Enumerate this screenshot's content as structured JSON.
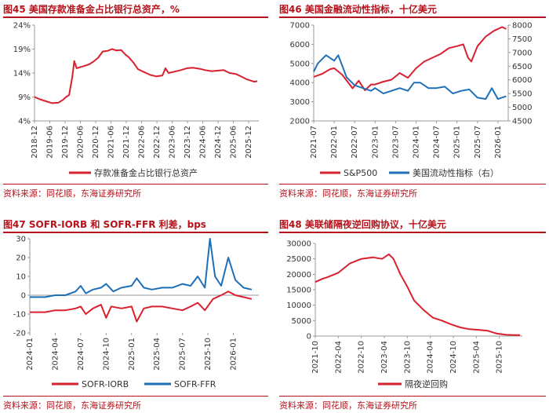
{
  "panels": {
    "p45": {
      "title": "图45  美国存款准备金占比银行总资产，%",
      "source": "资料来源：同花顺，东海证券研究所"
    },
    "p46": {
      "title": "图46  美国金融流动性指标，十亿美元",
      "source": "资料来源：同花顺，东海证券研究所"
    },
    "p47": {
      "title": "图47  SOFR-IORB 和 SOFR-FFR 利差，bps",
      "source": "资料来源：同花顺，东海证券研究所"
    },
    "p48": {
      "title": "图48  美联储隔夜逆回购协议，十亿美元",
      "source": "资料来源：同花顺，东海证券研究所"
    }
  },
  "colors": {
    "red": "#d9202f",
    "blue": "#1f6fb8",
    "accent": "#b5121b",
    "axis": "#999999"
  },
  "chart_data": [
    {
      "id": "c45",
      "type": "line",
      "title": "美国存款准备金占比银行总资产，%",
      "ylim": [
        4,
        24
      ],
      "yticks": [
        4,
        9,
        14,
        19,
        24
      ],
      "ytick_labels": [
        "4%",
        "9%",
        "14%",
        "19%",
        "24%"
      ],
      "xlim": [
        2018.92,
        2026.25
      ],
      "xtick_vals": [
        2018.92,
        2019.42,
        2019.92,
        2020.42,
        2020.92,
        2021.42,
        2021.92,
        2022.42,
        2022.92,
        2023.42,
        2023.92,
        2024.42,
        2024.92,
        2025.42,
        2025.92
      ],
      "xtick_labels": [
        "2018-12",
        "2019-06",
        "2019-12",
        "2020-06",
        "2020-12",
        "2021-06",
        "2021-12",
        "2022-06",
        "2022-12",
        "2023-06",
        "2023-12",
        "2024-06",
        "2024-12",
        "2025-06",
        "2025-12"
      ],
      "series": [
        {
          "name": "存款准备金占比银行总资产",
          "color": "#d9202f",
          "x": [
            2018.92,
            2019.1,
            2019.3,
            2019.5,
            2019.7,
            2019.85,
            2019.95,
            2020.05,
            2020.15,
            2020.22,
            2020.3,
            2020.4,
            2020.55,
            2020.7,
            2020.85,
            2021.0,
            2021.15,
            2021.3,
            2021.45,
            2021.6,
            2021.75,
            2021.9,
            2022.0,
            2022.15,
            2022.3,
            2022.5,
            2022.7,
            2022.9,
            2023.1,
            2023.2,
            2023.3,
            2023.5,
            2023.7,
            2023.9,
            2024.1,
            2024.3,
            2024.5,
            2024.7,
            2024.9,
            2025.1,
            2025.3,
            2025.5,
            2025.7,
            2025.85,
            2026.0,
            2026.1,
            2026.2
          ],
          "values": [
            9.0,
            8.5,
            8.1,
            7.7,
            7.8,
            8.4,
            9.0,
            9.4,
            13.0,
            16.5,
            15.0,
            15.2,
            15.5,
            15.8,
            16.4,
            17.2,
            18.5,
            18.6,
            19.0,
            18.7,
            18.8,
            17.8,
            17.3,
            16.2,
            14.8,
            14.2,
            13.6,
            13.3,
            13.5,
            15.0,
            14.0,
            14.3,
            14.6,
            15.0,
            15.1,
            14.9,
            14.6,
            14.4,
            14.5,
            14.6,
            14.0,
            13.8,
            13.2,
            12.7,
            12.4,
            12.2,
            12.3
          ]
        }
      ]
    },
    {
      "id": "c46",
      "type": "line",
      "title": "美国金融流动性指标，十亿美元",
      "ylim": [
        2000,
        7000
      ],
      "yticks": [
        2000,
        3000,
        4000,
        5000,
        6000,
        7000
      ],
      "ytick_labels": [
        "2000",
        "3000",
        "4000",
        "5000",
        "6000",
        "7000"
      ],
      "ylim_right": [
        4500,
        8000
      ],
      "yticks_right": [
        4500,
        5000,
        5500,
        6000,
        6500,
        7000,
        7500,
        8000
      ],
      "ytick_labels_right": [
        "4500",
        "5000",
        "5500",
        "6000",
        "6500",
        "7000",
        "7500",
        "8000"
      ],
      "xlim": [
        2021.5,
        2026.25
      ],
      "xtick_vals": [
        2021.5,
        2022.0,
        2022.5,
        2023.0,
        2023.5,
        2024.0,
        2024.5,
        2025.0,
        2025.5,
        2026.0
      ],
      "xtick_labels": [
        "2021-07",
        "2022-01",
        "2022-07",
        "2023-01",
        "2023-07",
        "2024-01",
        "2024-07",
        "2025-01",
        "2025-07",
        "2026-01"
      ],
      "series": [
        {
          "name": "S&P500",
          "color": "#d9202f",
          "axis": "left",
          "x": [
            2021.5,
            2021.7,
            2021.9,
            2022.0,
            2022.2,
            2022.45,
            2022.6,
            2022.75,
            2022.9,
            2023.0,
            2023.2,
            2023.4,
            2023.6,
            2023.8,
            2024.0,
            2024.2,
            2024.4,
            2024.6,
            2024.8,
            2025.0,
            2025.15,
            2025.27,
            2025.35,
            2025.5,
            2025.7,
            2025.9,
            2026.1,
            2026.2
          ],
          "values": [
            4300,
            4450,
            4700,
            4750,
            4400,
            3700,
            4100,
            3600,
            3900,
            3900,
            4050,
            4150,
            4500,
            4250,
            4750,
            5100,
            5300,
            5500,
            5800,
            5900,
            6000,
            5300,
            5100,
            5900,
            6400,
            6700,
            6900,
            6800
          ]
        },
        {
          "name": "美国流动性指标（右）",
          "color": "#1f6fb8",
          "axis": "right",
          "x": [
            2021.5,
            2021.6,
            2021.8,
            2022.0,
            2022.1,
            2022.3,
            2022.5,
            2022.7,
            2022.9,
            2023.0,
            2023.2,
            2023.4,
            2023.6,
            2023.8,
            2023.95,
            2024.1,
            2024.3,
            2024.5,
            2024.7,
            2024.9,
            2025.1,
            2025.3,
            2025.5,
            2025.7,
            2025.85,
            2026.0,
            2026.2
          ],
          "values": [
            6300,
            6600,
            6900,
            6700,
            6900,
            6100,
            5800,
            5700,
            5600,
            5700,
            5500,
            5600,
            5700,
            5600,
            5900,
            5900,
            5700,
            5700,
            5750,
            5500,
            5600,
            5650,
            5350,
            5300,
            5700,
            5300,
            5400
          ]
        }
      ]
    },
    {
      "id": "c47",
      "type": "line",
      "title": "SOFR-IORB 和 SOFR-FFR 利差，bps",
      "ylim": [
        -20,
        30
      ],
      "yticks": [
        -20,
        -10,
        0,
        10,
        20,
        30
      ],
      "ytick_labels": [
        "-20",
        "-10",
        "0",
        "10",
        "20",
        "30"
      ],
      "xlim": [
        2024.0,
        2026.25
      ],
      "xtick_vals": [
        2024.0,
        2024.25,
        2024.5,
        2024.75,
        2025.0,
        2025.25,
        2025.5,
        2025.75,
        2026.0
      ],
      "xtick_labels": [
        "2024-01",
        "2024-04",
        "2024-07",
        "2024-10",
        "2025-01",
        "2025-04",
        "2025-07",
        "2025-10",
        "2026-01"
      ],
      "series": [
        {
          "name": "SOFR-IORB",
          "color": "#d9202f",
          "x": [
            2024.0,
            2024.05,
            2024.15,
            2024.25,
            2024.35,
            2024.45,
            2024.5,
            2024.55,
            2024.62,
            2024.7,
            2024.75,
            2024.8,
            2024.9,
            2025.0,
            2025.05,
            2025.12,
            2025.2,
            2025.3,
            2025.4,
            2025.5,
            2025.58,
            2025.65,
            2025.72,
            2025.8,
            2025.88,
            2025.95,
            2026.02,
            2026.1,
            2026.18
          ],
          "values": [
            -9,
            -9,
            -9,
            -8,
            -8,
            -7,
            -6,
            -10,
            -7,
            -5,
            -12,
            -6,
            -7,
            -6,
            -14,
            -7,
            -6,
            -6,
            -7,
            -8,
            -6,
            -4,
            -8,
            -2,
            0,
            2,
            0,
            -1,
            -2
          ]
        },
        {
          "name": "SOFR-FFR",
          "color": "#1f6fb8",
          "x": [
            2024.0,
            2024.05,
            2024.15,
            2024.25,
            2024.35,
            2024.45,
            2024.5,
            2024.55,
            2024.62,
            2024.7,
            2024.75,
            2024.82,
            2024.9,
            2025.0,
            2025.05,
            2025.12,
            2025.2,
            2025.3,
            2025.4,
            2025.5,
            2025.58,
            2025.65,
            2025.72,
            2025.77,
            2025.82,
            2025.88,
            2025.95,
            2026.02,
            2026.1,
            2026.18
          ],
          "values": [
            -1,
            -1,
            -1,
            0,
            0,
            2,
            5,
            1,
            3,
            4,
            6,
            2,
            4,
            5,
            9,
            4,
            3,
            4,
            4,
            6,
            5,
            10,
            4,
            30,
            10,
            5,
            20,
            8,
            4,
            3
          ]
        }
      ]
    },
    {
      "id": "c48",
      "type": "line",
      "title": "美联储隔夜逆回购协议，十亿美元",
      "ylim": [
        0,
        30000
      ],
      "yticks": [
        0,
        5000,
        10000,
        15000,
        20000,
        25000,
        30000
      ],
      "ytick_labels": [
        "0",
        "5000",
        "10000",
        "15000",
        "20000",
        "25000",
        "30000"
      ],
      "xlim": [
        2021.75,
        2026.25
      ],
      "xtick_vals": [
        2021.75,
        2022.25,
        2022.75,
        2023.25,
        2023.75,
        2024.25,
        2024.75,
        2025.25,
        2025.75
      ],
      "xtick_labels": [
        "2021-10",
        "2022-04",
        "2022-10",
        "2023-04",
        "2023-10",
        "2024-04",
        "2024-10",
        "2025-04",
        "2025-10"
      ],
      "series": [
        {
          "name": "隔夜逆回购",
          "color": "#d9202f",
          "x": [
            2021.75,
            2021.9,
            2022.0,
            2022.25,
            2022.5,
            2022.75,
            2023.0,
            2023.2,
            2023.35,
            2023.45,
            2023.6,
            2023.75,
            2023.9,
            2024.1,
            2024.3,
            2024.5,
            2024.7,
            2024.9,
            2025.1,
            2025.3,
            2025.5,
            2025.7,
            2025.9,
            2026.1,
            2026.2
          ],
          "values": [
            17500,
            18500,
            19000,
            20500,
            23500,
            25000,
            25500,
            25000,
            26500,
            25000,
            20000,
            16000,
            11500,
            8500,
            6000,
            5000,
            3800,
            2800,
            2200,
            2000,
            1700,
            800,
            400,
            300,
            300
          ]
        }
      ]
    }
  ]
}
